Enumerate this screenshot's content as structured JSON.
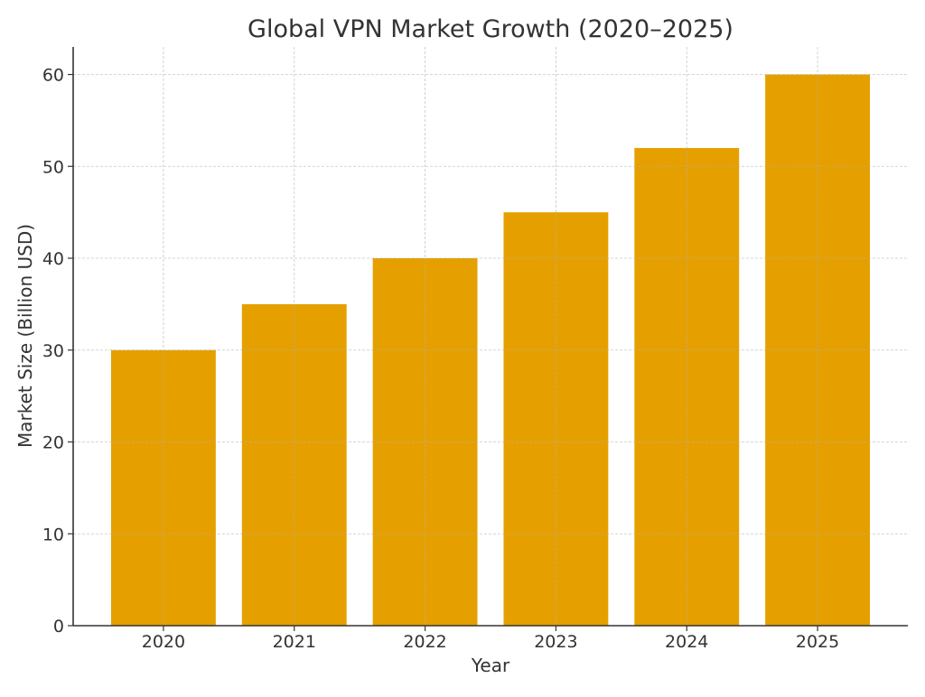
{
  "chart_data": {
    "type": "bar",
    "title": "Global VPN Market Growth (2020–2025)",
    "xlabel": "Year",
    "ylabel": "Market Size (Billion USD)",
    "categories": [
      "2020",
      "2021",
      "2022",
      "2023",
      "2024",
      "2025"
    ],
    "values": [
      30,
      35,
      40,
      45,
      52,
      60
    ],
    "ylim": [
      0,
      63
    ],
    "yticks": [
      0,
      10,
      20,
      30,
      40,
      50,
      60
    ],
    "grid": true,
    "bar_color": "#E5A000"
  }
}
